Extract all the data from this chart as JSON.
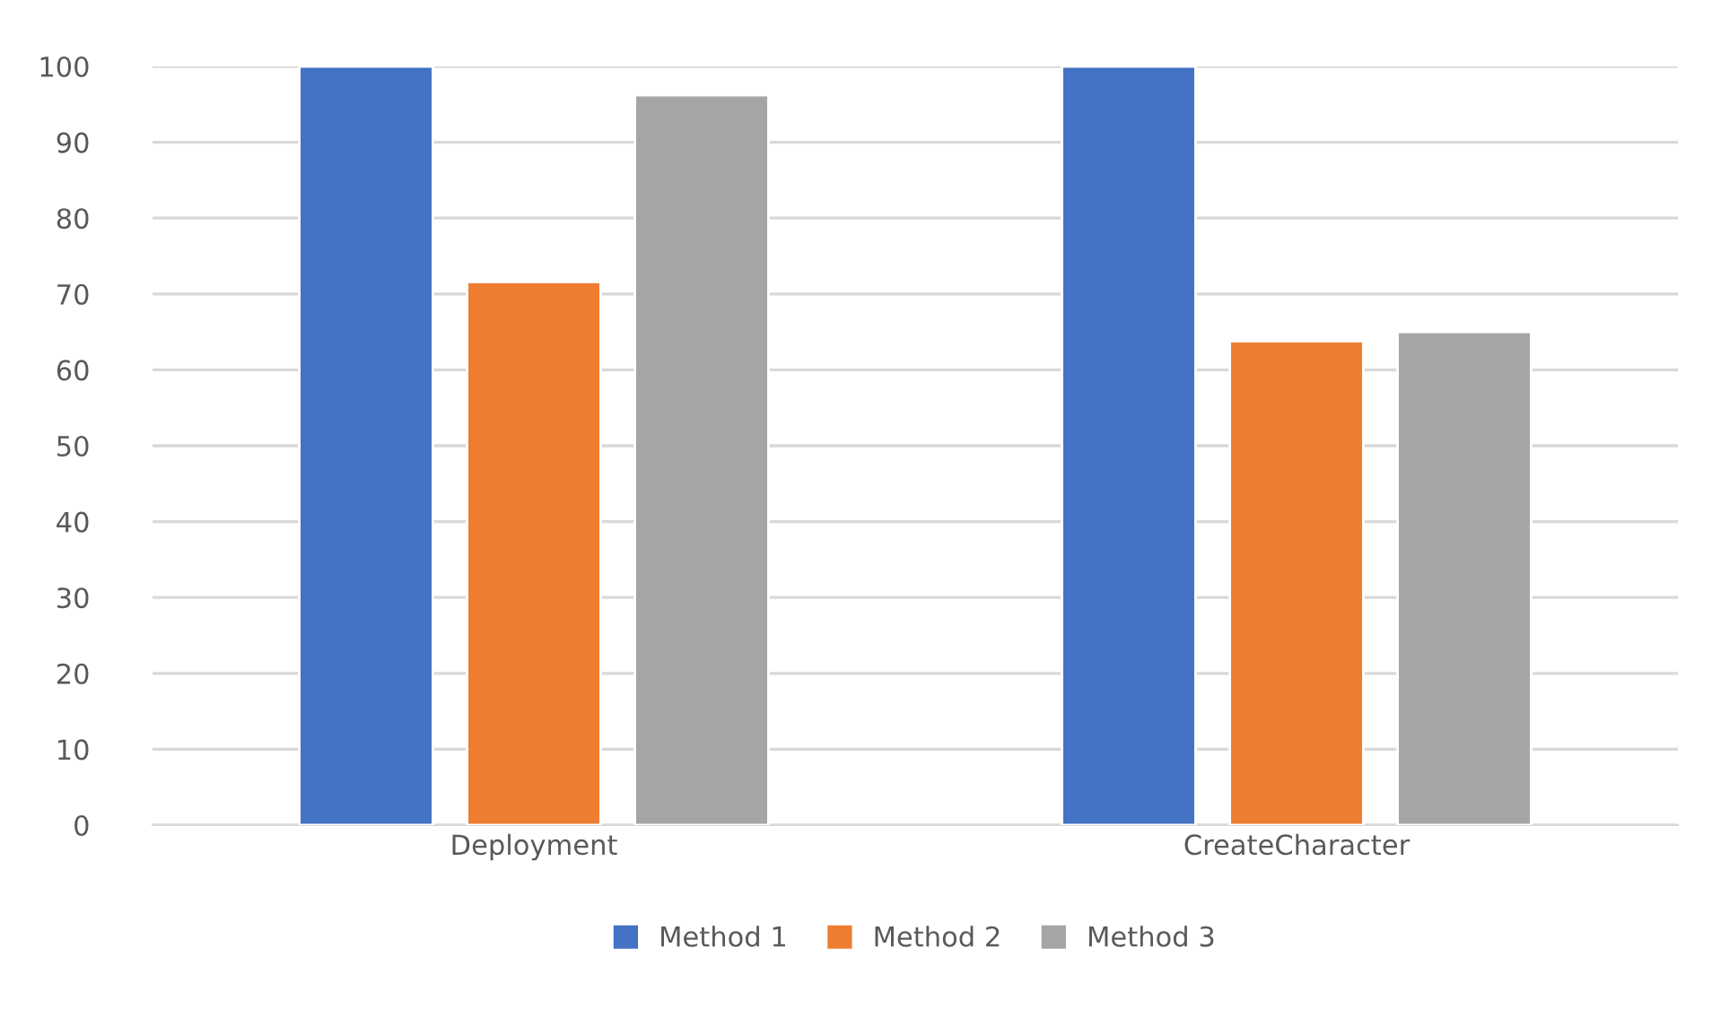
{
  "chart_data": {
    "type": "bar",
    "categories": [
      "Deployment",
      "CreateCharacter"
    ],
    "series": [
      {
        "name": "Method 1",
        "color": "#4472c4",
        "values": [
          100,
          100
        ]
      },
      {
        "name": "Method 2",
        "color": "#ed7d31",
        "values": [
          71.6,
          63.8
        ]
      },
      {
        "name": "Method 3",
        "color": "#a5a5a5",
        "values": [
          96.2,
          65.0
        ]
      }
    ],
    "ylim": [
      0,
      100
    ],
    "yticks": [
      0,
      10,
      20,
      30,
      40,
      50,
      60,
      70,
      80,
      90,
      100
    ],
    "grid": "y",
    "legend": "bottom"
  }
}
